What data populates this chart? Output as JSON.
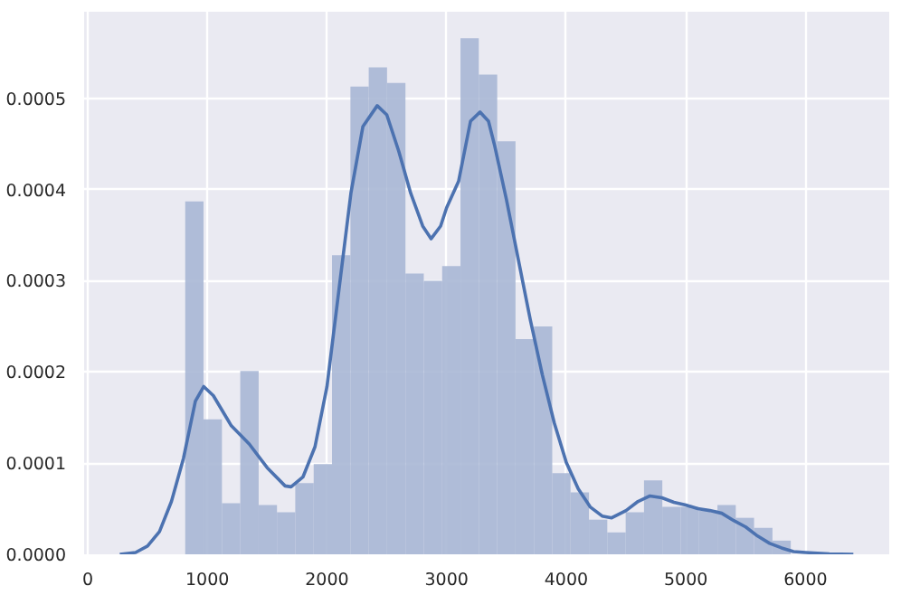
{
  "chart_data": {
    "type": "histogram",
    "bins": [
      815,
      968,
      1122,
      1275,
      1429,
      1582,
      1735,
      1889,
      2042,
      2196,
      2349,
      2502,
      2656,
      2809,
      2963,
      3116,
      3269,
      3423,
      3576,
      3730,
      3883,
      4036,
      4190,
      4343,
      4497,
      4650,
      4803,
      4957,
      5110,
      5264,
      5417,
      5570,
      5724,
      5877
    ],
    "values": [
      0.000387,
      0.000148,
      5.6e-05,
      0.000201,
      5.4e-05,
      4.6e-05,
      7.8e-05,
      9.9e-05,
      0.000328,
      0.000513,
      0.000534,
      0.000517,
      0.000308,
      0.0003,
      0.000316,
      0.000566,
      0.000526,
      0.000453,
      0.000236,
      0.00025,
      8.9e-05,
      6.8e-05,
      3.8e-05,
      2.4e-05,
      4.6e-05,
      8.1e-05,
      5.2e-05,
      5.2e-05,
      4.8e-05,
      5.4e-05,
      4e-05,
      2.9e-05,
      1.5e-05
    ],
    "color": "#a8b7d5",
    "series": [
      {
        "type": "line",
        "color": "#4c72b0",
        "x": [
          268,
          400,
          500,
          600,
          700,
          800,
          900,
          970,
          1050,
          1200,
          1350,
          1500,
          1650,
          1700,
          1800,
          1900,
          2000,
          2100,
          2200,
          2300,
          2420,
          2500,
          2600,
          2700,
          2800,
          2870,
          2950,
          3000,
          3100,
          3200,
          3280,
          3350,
          3400,
          3500,
          3600,
          3700,
          3800,
          3900,
          4000,
          4100,
          4200,
          4300,
          4380,
          4500,
          4600,
          4700,
          4800,
          4900,
          5000,
          5100,
          5200,
          5300,
          5400,
          5500,
          5600,
          5700,
          5800,
          5900,
          6000,
          6200,
          6400
        ],
        "values": [
          0.0,
          2e-06,
          9e-06,
          2.5e-05,
          5.8e-05,
          0.000105,
          0.000168,
          0.000184,
          0.000174,
          0.000141,
          0.000121,
          9.5e-05,
          7.5e-05,
          7.4e-05,
          8.5e-05,
          0.000118,
          0.000184,
          0.00029,
          0.000396,
          0.000469,
          0.000492,
          0.000482,
          0.000442,
          0.000396,
          0.00036,
          0.000346,
          0.00036,
          0.00038,
          0.000409,
          0.000475,
          0.000485,
          0.000475,
          0.000449,
          0.000389,
          0.000323,
          0.000257,
          0.000197,
          0.000144,
          0.000101,
          7.2e-05,
          5.2e-05,
          4.2e-05,
          4e-05,
          4.8e-05,
          5.8e-05,
          6.4e-05,
          6.2e-05,
          5.7e-05,
          5.4e-05,
          5e-05,
          4.8e-05,
          4.5e-05,
          3.7e-05,
          3e-05,
          2e-05,
          1.2e-05,
          7e-06,
          3e-06,
          2e-06,
          5e-07,
          0.0
        ]
      }
    ],
    "xlim": [
      -30,
      6700
    ],
    "ylim": [
      0,
      0.000595
    ],
    "xticks": [
      0,
      1000,
      2000,
      3000,
      4000,
      5000,
      6000
    ],
    "yticks": [
      {
        "value": 0,
        "label": "0.0000"
      },
      {
        "value": 0.0001,
        "label": "0.0001"
      },
      {
        "value": 0.0002,
        "label": "0.0002"
      },
      {
        "value": 0.0003,
        "label": "0.0003"
      },
      {
        "value": 0.0004,
        "label": "0.0004"
      },
      {
        "value": 0.0005,
        "label": "0.0005"
      }
    ],
    "grid": true
  }
}
